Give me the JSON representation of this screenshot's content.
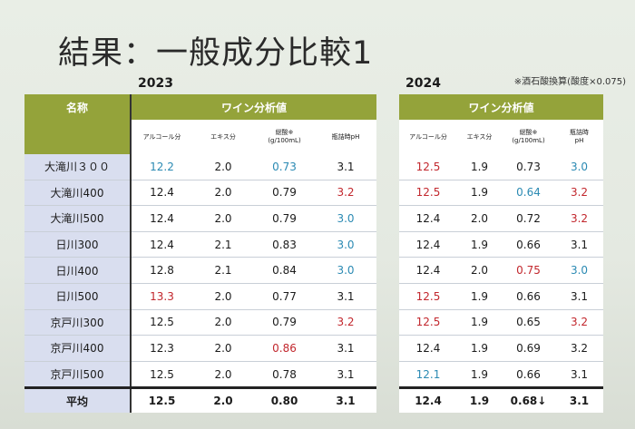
{
  "title": "結果：一般成分比較1",
  "note": "※酒石酸換算(酸度×0.075)",
  "t2023": {
    "year": "2023",
    "name_header": "名称",
    "group_header": "ワイン分析値",
    "columns": [
      "アルコール分",
      "エキス分",
      "総酸※",
      "(g/100mL)",
      "瓶詰時pH"
    ],
    "rows": [
      {
        "name": "大滝川３００",
        "vals": [
          [
            "12.2",
            "blue"
          ],
          [
            "2.0",
            "base"
          ],
          [
            "0.73",
            "blue"
          ],
          [
            "3.1",
            "base"
          ]
        ]
      },
      {
        "name": "大滝川400",
        "vals": [
          [
            "12.4",
            "base"
          ],
          [
            "2.0",
            "base"
          ],
          [
            "0.79",
            "base"
          ],
          [
            "3.2",
            "red"
          ]
        ]
      },
      {
        "name": "大滝川500",
        "vals": [
          [
            "12.4",
            "base"
          ],
          [
            "2.0",
            "base"
          ],
          [
            "0.79",
            "base"
          ],
          [
            "3.0",
            "blue"
          ]
        ]
      },
      {
        "name": "日川300",
        "vals": [
          [
            "12.4",
            "base"
          ],
          [
            "2.1",
            "base"
          ],
          [
            "0.83",
            "base"
          ],
          [
            "3.0",
            "blue"
          ]
        ]
      },
      {
        "name": "日川400",
        "vals": [
          [
            "12.8",
            "base"
          ],
          [
            "2.1",
            "base"
          ],
          [
            "0.84",
            "base"
          ],
          [
            "3.0",
            "blue"
          ]
        ]
      },
      {
        "name": "日川500",
        "vals": [
          [
            "13.3",
            "red"
          ],
          [
            "2.0",
            "base"
          ],
          [
            "0.77",
            "base"
          ],
          [
            "3.1",
            "base"
          ]
        ]
      },
      {
        "name": "京戸川300",
        "vals": [
          [
            "12.5",
            "base"
          ],
          [
            "2.0",
            "base"
          ],
          [
            "0.79",
            "base"
          ],
          [
            "3.2",
            "red"
          ]
        ]
      },
      {
        "name": "京戸川400",
        "vals": [
          [
            "12.3",
            "base"
          ],
          [
            "2.0",
            "base"
          ],
          [
            "0.86",
            "red"
          ],
          [
            "3.1",
            "base"
          ]
        ]
      },
      {
        "name": "京戸川500",
        "vals": [
          [
            "12.5",
            "base"
          ],
          [
            "2.0",
            "base"
          ],
          [
            "0.78",
            "base"
          ],
          [
            "3.1",
            "base"
          ]
        ]
      }
    ],
    "avg": {
      "name": "平均",
      "vals": [
        "12.5",
        "2.0",
        "0.80",
        "3.1"
      ]
    }
  },
  "t2024": {
    "year": "2024",
    "group_header": "ワイン分析値",
    "columns": [
      "アルコール分",
      "エキス分",
      "総酸※",
      "(g/100mL)",
      "瓶詰時",
      "pH"
    ],
    "rows": [
      [
        [
          "12.5",
          "red"
        ],
        [
          "1.9",
          "base"
        ],
        [
          "0.73",
          "base"
        ],
        [
          "3.0",
          "blue"
        ]
      ],
      [
        [
          "12.5",
          "red"
        ],
        [
          "1.9",
          "base"
        ],
        [
          "0.64",
          "blue"
        ],
        [
          "3.2",
          "red"
        ]
      ],
      [
        [
          "12.4",
          "base"
        ],
        [
          "2.0",
          "base"
        ],
        [
          "0.72",
          "base"
        ],
        [
          "3.2",
          "red"
        ]
      ],
      [
        [
          "12.4",
          "base"
        ],
        [
          "1.9",
          "base"
        ],
        [
          "0.66",
          "base"
        ],
        [
          "3.1",
          "base"
        ]
      ],
      [
        [
          "12.4",
          "base"
        ],
        [
          "2.0",
          "base"
        ],
        [
          "0.75",
          "red"
        ],
        [
          "3.0",
          "blue"
        ]
      ],
      [
        [
          "12.5",
          "red"
        ],
        [
          "1.9",
          "base"
        ],
        [
          "0.66",
          "base"
        ],
        [
          "3.1",
          "base"
        ]
      ],
      [
        [
          "12.5",
          "red"
        ],
        [
          "1.9",
          "base"
        ],
        [
          "0.65",
          "base"
        ],
        [
          "3.2",
          "red"
        ]
      ],
      [
        [
          "12.4",
          "base"
        ],
        [
          "1.9",
          "base"
        ],
        [
          "0.69",
          "base"
        ],
        [
          "3.2",
          "base"
        ]
      ],
      [
        [
          "12.1",
          "blue"
        ],
        [
          "1.9",
          "base"
        ],
        [
          "0.66",
          "base"
        ],
        [
          "3.1",
          "base"
        ]
      ]
    ],
    "avg": {
      "vals": [
        "12.4",
        "1.9",
        "0.68↓",
        "3.1"
      ]
    }
  }
}
